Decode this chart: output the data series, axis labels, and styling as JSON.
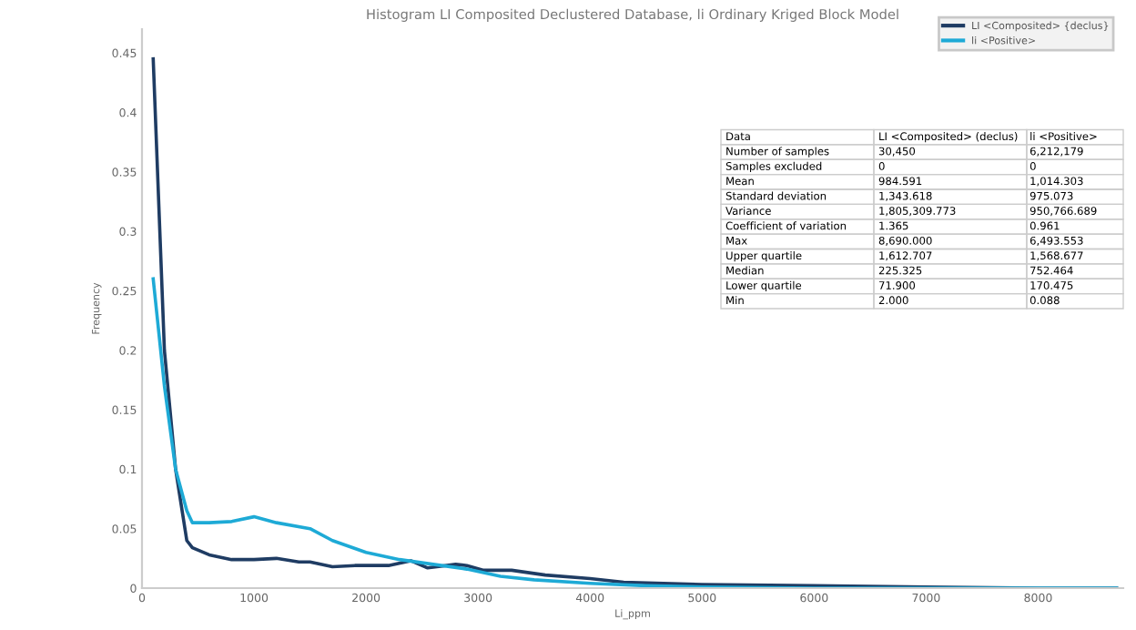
{
  "chart_data": {
    "type": "line",
    "title": "Histogram LI Composited Declustered Database, li Ordinary Kriged Block Model",
    "xlabel": "Li_ppm",
    "ylabel": "Frequency",
    "series": [
      {
        "name": "LI <Composited> {declus}",
        "color": "#1f3c63",
        "x": [
          100,
          200,
          300,
          400,
          450,
          600,
          800,
          1000,
          1200,
          1400,
          1500,
          1700,
          1900,
          2200,
          2400,
          2550,
          2800,
          2900,
          3050,
          3300,
          3600,
          4000,
          4300,
          5000,
          6000,
          7000,
          8000,
          8700
        ],
        "values": [
          0.445,
          0.2,
          0.1,
          0.04,
          0.034,
          0.028,
          0.024,
          0.024,
          0.025,
          0.022,
          0.022,
          0.018,
          0.019,
          0.019,
          0.023,
          0.017,
          0.02,
          0.019,
          0.015,
          0.015,
          0.011,
          0.008,
          0.005,
          0.003,
          0.002,
          0.001,
          0,
          0
        ]
      },
      {
        "name": "li <Positive>",
        "color": "#1eaad6",
        "x": [
          100,
          200,
          300,
          400,
          450,
          600,
          800,
          1000,
          1200,
          1500,
          1700,
          2000,
          2300,
          2600,
          2900,
          3200,
          3500,
          4000,
          4500,
          5000,
          6000,
          7000,
          8700
        ],
        "values": [
          0.26,
          0.17,
          0.1,
          0.065,
          0.055,
          0.055,
          0.056,
          0.06,
          0.055,
          0.05,
          0.04,
          0.03,
          0.024,
          0.02,
          0.016,
          0.01,
          0.007,
          0.004,
          0.002,
          0.001,
          0,
          0,
          0
        ]
      }
    ],
    "xlim": [
      0,
      8760
    ],
    "xticks": [
      0,
      1000,
      2000,
      3000,
      4000,
      5000,
      6000,
      7000,
      8000
    ],
    "ylim": [
      0,
      0.47
    ],
    "yticks": [
      0,
      0.05,
      0.1,
      0.15,
      0.2,
      0.25,
      0.3,
      0.35,
      0.4,
      0.45
    ],
    "legend": "top right",
    "grid": false,
    "annotations": [
      "Data",
      "LI <Composited> (declus)",
      "li <Positive>",
      "Number of samples",
      "30,450",
      "6,212,179",
      "Samples excluded",
      "0",
      "0",
      "Mean",
      "984.591",
      "1,014.303",
      "Standard deviation",
      "1,343.618",
      "975.073",
      "Variance",
      "1,805,309.773",
      "950,766.689",
      "Coefficient of variation",
      "1.365",
      "0.961",
      "Max",
      "8,690.000",
      "6,493.553",
      "Upper quartile",
      "1,612.707",
      "1,568.677",
      "Median",
      "225.325",
      "752.464",
      "Lower quartile",
      "71.900",
      "170.475",
      "Min",
      "2.000",
      "0.088"
    ]
  }
}
